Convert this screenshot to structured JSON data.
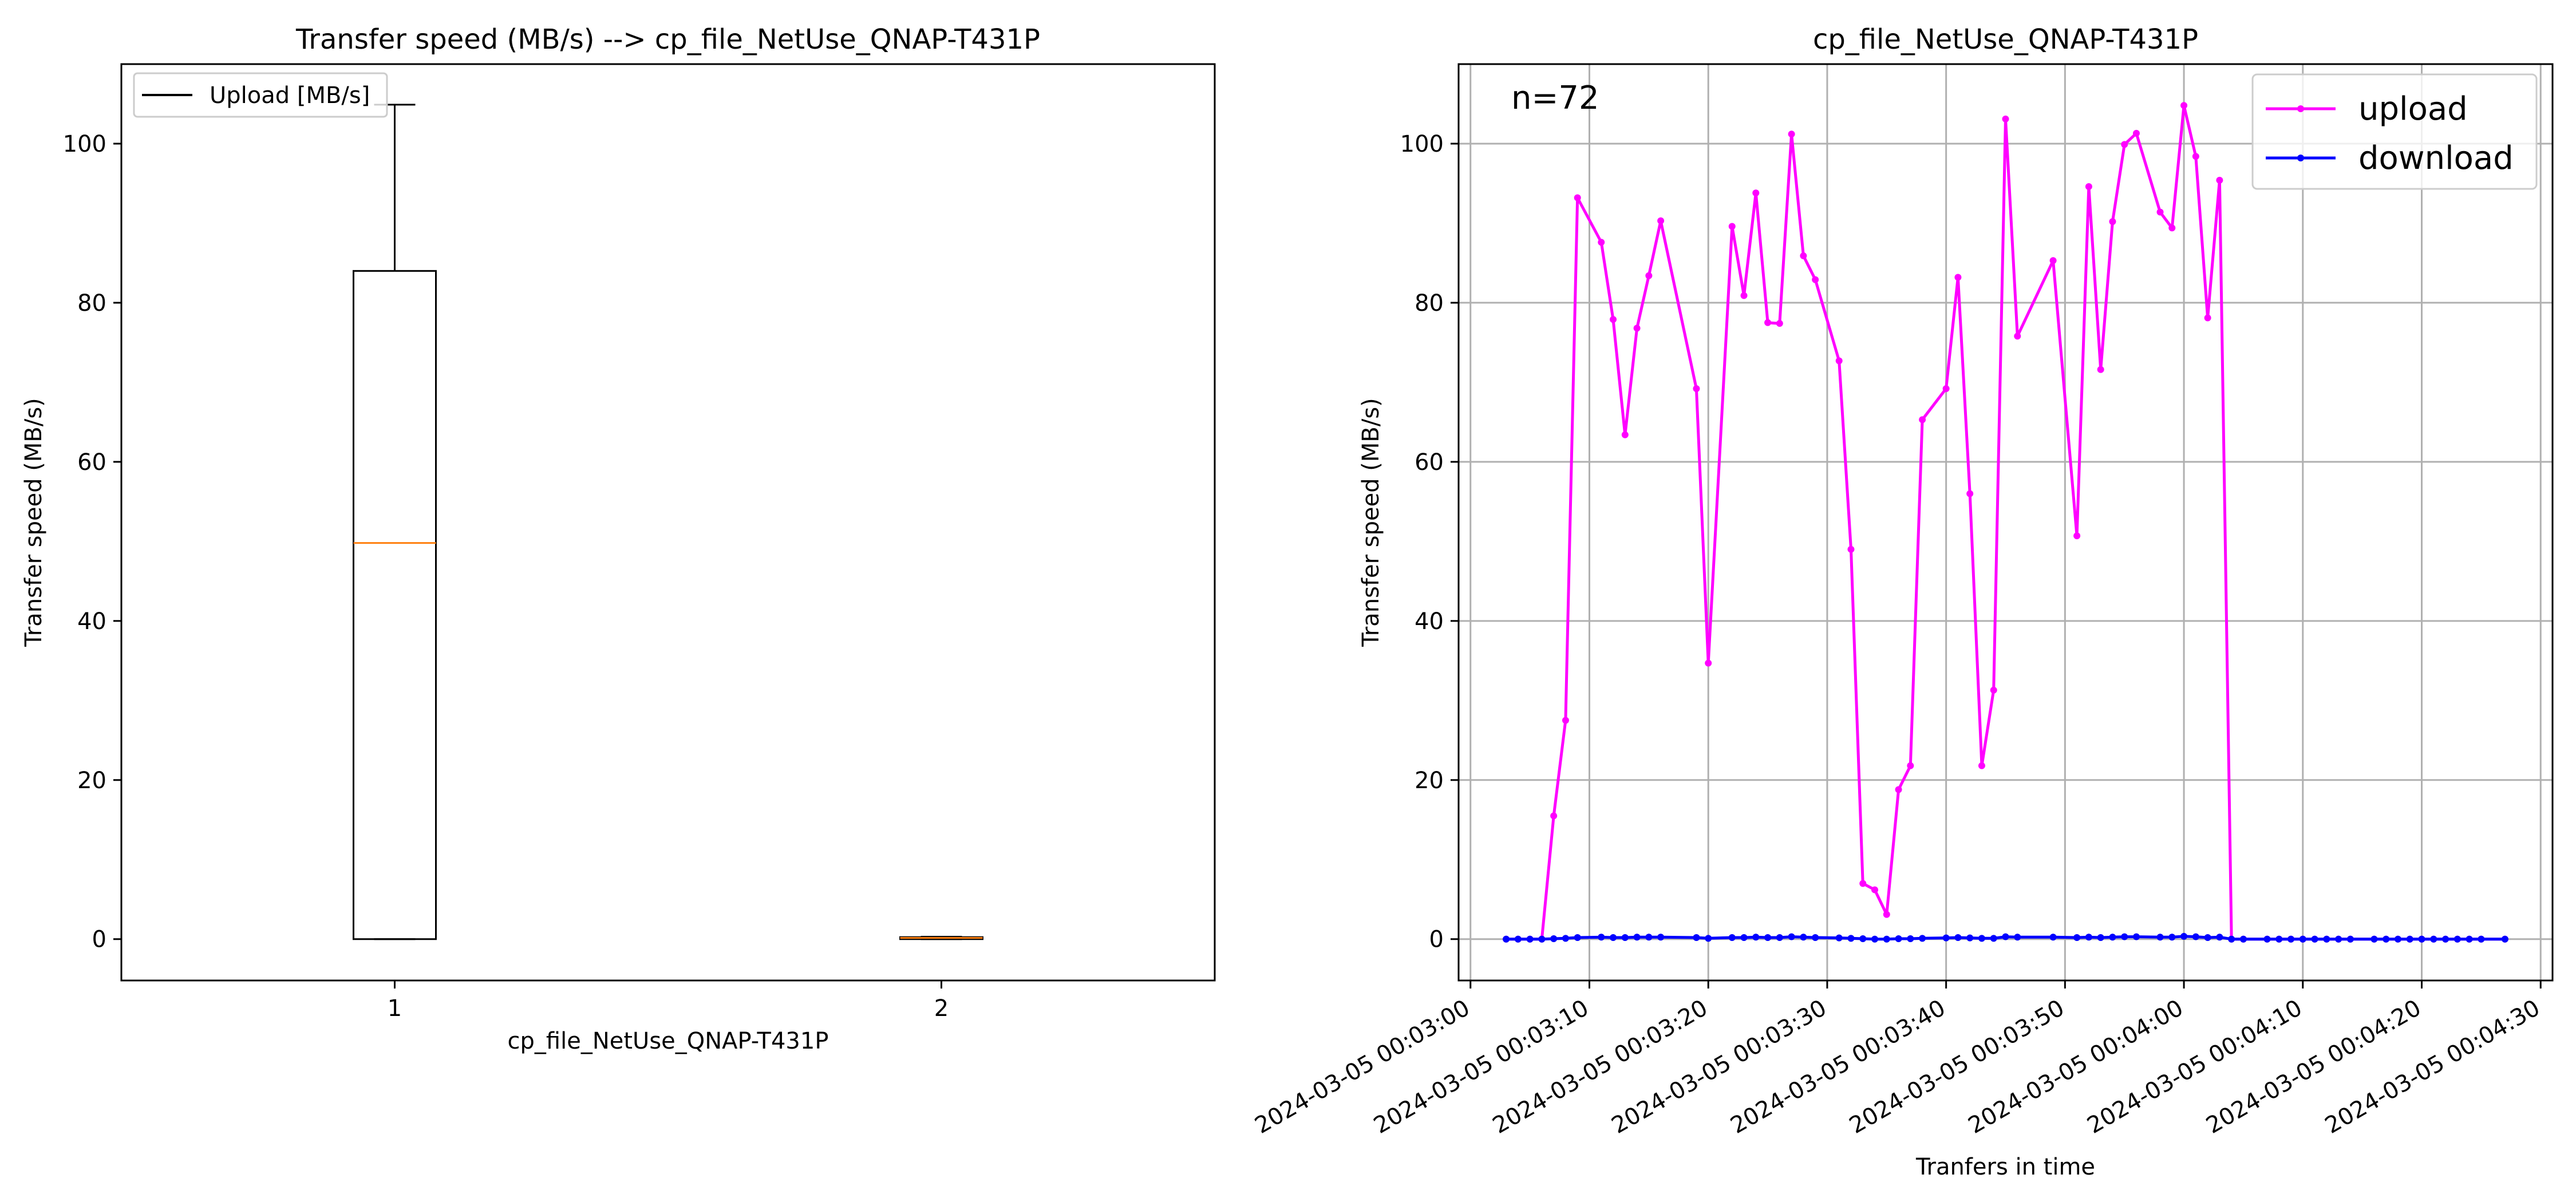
{
  "colors": {
    "box": "#000000",
    "median": "#ff7f0e",
    "upload": "#ff00ff",
    "download": "#0000ff",
    "grid": "#b0b0b0"
  },
  "chart_data": [
    {
      "type": "box",
      "title": "Transfer speed (MB/s) --> cp_file_NetUse_QNAP-T431P",
      "xlabel": "cp_file_NetUse_QNAP-T431P",
      "ylabel": "Transfer speed (MB/s)",
      "ylim": [
        -5.2,
        110
      ],
      "yticks": [
        0,
        20,
        40,
        60,
        80,
        100
      ],
      "xticks": [
        "1",
        "2"
      ],
      "grid": false,
      "legend": {
        "position": "top-left",
        "entries": [
          "Upload [MB/s]"
        ]
      },
      "boxes": [
        {
          "position": 1,
          "whisker_low": 0,
          "q1": 0,
          "median": 49.8,
          "q3": 84.0,
          "whisker_high": 104.9
        },
        {
          "position": 2,
          "whisker_low": 0.0,
          "q1": 0.0,
          "median": 0.15,
          "q3": 0.25,
          "whisker_high": 0.3
        }
      ]
    },
    {
      "type": "line",
      "title": "cp_file_NetUse_QNAP-T431P",
      "xlabel": "Tranfers in time",
      "ylabel": "Transfer speed (MB/s)",
      "annotation": "n=72",
      "ylim": [
        -5.2,
        110
      ],
      "yticks": [
        0,
        20,
        40,
        60,
        80,
        100
      ],
      "xlim": [
        "2024-03-05 00:02:59",
        "2024-03-05 00:04:31"
      ],
      "xticks": [
        "2024-03-05 00:03:00",
        "2024-03-05 00:03:10",
        "2024-03-05 00:03:20",
        "2024-03-05 00:03:30",
        "2024-03-05 00:03:40",
        "2024-03-05 00:03:50",
        "2024-03-05 00:04:00",
        "2024-03-05 00:04:10",
        "2024-03-05 00:04:20",
        "2024-03-05 00:04:30"
      ],
      "grid": true,
      "legend": {
        "position": "top-right"
      },
      "series": [
        {
          "name": "upload",
          "x": [
            "2024-03-05 00:03:03",
            "2024-03-05 00:03:04",
            "2024-03-05 00:03:05",
            "2024-03-05 00:03:06",
            "2024-03-05 00:03:07",
            "2024-03-05 00:03:08",
            "2024-03-05 00:03:09",
            "2024-03-05 00:03:11",
            "2024-03-05 00:03:12",
            "2024-03-05 00:03:13",
            "2024-03-05 00:03:14",
            "2024-03-05 00:03:15",
            "2024-03-05 00:03:16",
            "2024-03-05 00:03:19",
            "2024-03-05 00:03:20",
            "2024-03-05 00:03:22",
            "2024-03-05 00:03:23",
            "2024-03-05 00:03:24",
            "2024-03-05 00:03:25",
            "2024-03-05 00:03:26",
            "2024-03-05 00:03:27",
            "2024-03-05 00:03:28",
            "2024-03-05 00:03:29",
            "2024-03-05 00:03:31",
            "2024-03-05 00:03:32",
            "2024-03-05 00:03:33",
            "2024-03-05 00:03:34",
            "2024-03-05 00:03:35",
            "2024-03-05 00:03:36",
            "2024-03-05 00:03:37",
            "2024-03-05 00:03:38",
            "2024-03-05 00:03:40",
            "2024-03-05 00:03:41",
            "2024-03-05 00:03:42",
            "2024-03-05 00:03:43",
            "2024-03-05 00:03:44",
            "2024-03-05 00:03:45",
            "2024-03-05 00:03:46",
            "2024-03-05 00:03:49",
            "2024-03-05 00:03:51",
            "2024-03-05 00:03:52",
            "2024-03-05 00:03:53",
            "2024-03-05 00:03:54",
            "2024-03-05 00:03:55",
            "2024-03-05 00:03:56",
            "2024-03-05 00:03:58",
            "2024-03-05 00:03:59",
            "2024-03-05 00:04:00",
            "2024-03-05 00:04:01",
            "2024-03-05 00:04:02",
            "2024-03-05 00:04:03",
            "2024-03-05 00:04:04",
            "2024-03-05 00:04:05",
            "2024-03-05 00:04:07",
            "2024-03-05 00:04:08",
            "2024-03-05 00:04:09",
            "2024-03-05 00:04:10",
            "2024-03-05 00:04:11",
            "2024-03-05 00:04:12",
            "2024-03-05 00:04:13",
            "2024-03-05 00:04:14",
            "2024-03-05 00:04:16",
            "2024-03-05 00:04:17",
            "2024-03-05 00:04:18",
            "2024-03-05 00:04:19",
            "2024-03-05 00:04:20",
            "2024-03-05 00:04:21",
            "2024-03-05 00:04:22",
            "2024-03-05 00:04:23",
            "2024-03-05 00:04:24",
            "2024-03-05 00:04:25",
            "2024-03-05 00:04:27"
          ],
          "y": [
            0,
            0,
            0,
            0,
            15.5,
            27.5,
            93.2,
            87.6,
            77.9,
            63.4,
            76.8,
            83.4,
            90.3,
            69.2,
            34.7,
            89.6,
            80.9,
            93.8,
            77.5,
            77.4,
            101.2,
            85.9,
            82.9,
            72.7,
            49.0,
            7.0,
            6.2,
            3.1,
            18.8,
            21.8,
            65.3,
            69.2,
            83.2,
            56.0,
            21.8,
            31.3,
            103.1,
            75.8,
            85.3,
            50.7,
            94.6,
            71.6,
            90.2,
            99.9,
            101.3,
            91.4,
            89.4,
            104.8,
            98.4,
            78.1,
            95.4,
            0,
            0,
            0,
            0,
            0,
            0,
            0,
            0,
            0,
            0,
            0,
            0,
            0,
            0,
            0,
            0,
            0,
            0,
            0,
            0,
            0
          ]
        },
        {
          "name": "download",
          "x": [
            "2024-03-05 00:03:03",
            "2024-03-05 00:03:04",
            "2024-03-05 00:03:05",
            "2024-03-05 00:03:06",
            "2024-03-05 00:03:07",
            "2024-03-05 00:03:08",
            "2024-03-05 00:03:09",
            "2024-03-05 00:03:11",
            "2024-03-05 00:03:12",
            "2024-03-05 00:03:13",
            "2024-03-05 00:03:14",
            "2024-03-05 00:03:15",
            "2024-03-05 00:03:16",
            "2024-03-05 00:03:19",
            "2024-03-05 00:03:20",
            "2024-03-05 00:03:22",
            "2024-03-05 00:03:23",
            "2024-03-05 00:03:24",
            "2024-03-05 00:03:25",
            "2024-03-05 00:03:26",
            "2024-03-05 00:03:27",
            "2024-03-05 00:03:28",
            "2024-03-05 00:03:29",
            "2024-03-05 00:03:31",
            "2024-03-05 00:03:32",
            "2024-03-05 00:03:33",
            "2024-03-05 00:03:34",
            "2024-03-05 00:03:35",
            "2024-03-05 00:03:36",
            "2024-03-05 00:03:37",
            "2024-03-05 00:03:38",
            "2024-03-05 00:03:40",
            "2024-03-05 00:03:41",
            "2024-03-05 00:03:42",
            "2024-03-05 00:03:43",
            "2024-03-05 00:03:44",
            "2024-03-05 00:03:45",
            "2024-03-05 00:03:46",
            "2024-03-05 00:03:49",
            "2024-03-05 00:03:51",
            "2024-03-05 00:03:52",
            "2024-03-05 00:03:53",
            "2024-03-05 00:03:54",
            "2024-03-05 00:03:55",
            "2024-03-05 00:03:56",
            "2024-03-05 00:03:58",
            "2024-03-05 00:03:59",
            "2024-03-05 00:04:00",
            "2024-03-05 00:04:01",
            "2024-03-05 00:04:02",
            "2024-03-05 00:04:03",
            "2024-03-05 00:04:04",
            "2024-03-05 00:04:05",
            "2024-03-05 00:04:07",
            "2024-03-05 00:04:08",
            "2024-03-05 00:04:09",
            "2024-03-05 00:04:10",
            "2024-03-05 00:04:11",
            "2024-03-05 00:04:12",
            "2024-03-05 00:04:13",
            "2024-03-05 00:04:14",
            "2024-03-05 00:04:16",
            "2024-03-05 00:04:17",
            "2024-03-05 00:04:18",
            "2024-03-05 00:04:19",
            "2024-03-05 00:04:20",
            "2024-03-05 00:04:21",
            "2024-03-05 00:04:22",
            "2024-03-05 00:04:23",
            "2024-03-05 00:04:24",
            "2024-03-05 00:04:25",
            "2024-03-05 00:04:27"
          ],
          "y": [
            0.0,
            0.0,
            0.0,
            0.0,
            0.05,
            0.1,
            0.2,
            0.25,
            0.2,
            0.2,
            0.25,
            0.25,
            0.25,
            0.2,
            0.1,
            0.2,
            0.2,
            0.25,
            0.2,
            0.2,
            0.3,
            0.25,
            0.2,
            0.15,
            0.1,
            0.05,
            0.0,
            0.0,
            0.05,
            0.05,
            0.1,
            0.15,
            0.2,
            0.15,
            0.1,
            0.1,
            0.3,
            0.25,
            0.25,
            0.2,
            0.25,
            0.2,
            0.25,
            0.3,
            0.3,
            0.25,
            0.25,
            0.35,
            0.3,
            0.2,
            0.25,
            0.0,
            0.0,
            0.0,
            0.0,
            0.0,
            0.0,
            0.0,
            0.0,
            0.0,
            0.0,
            0.0,
            0.0,
            0.0,
            0.0,
            0.0,
            0.0,
            0.0,
            0.0,
            0.0,
            0.0,
            0.0
          ]
        }
      ]
    }
  ]
}
